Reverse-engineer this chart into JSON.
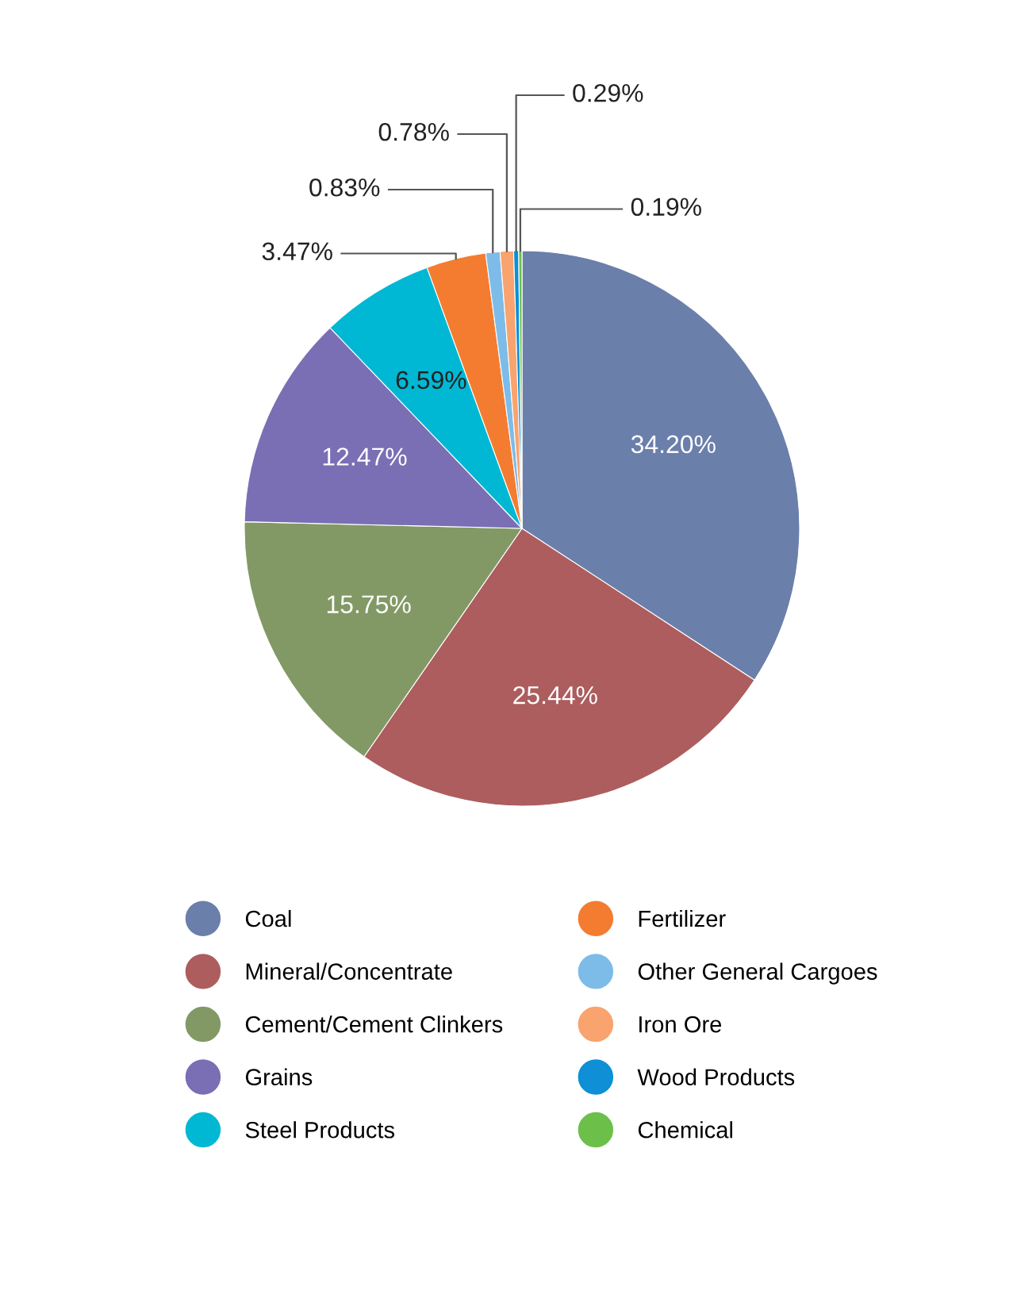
{
  "chart_data": {
    "type": "pie",
    "categories": [
      "Coal",
      "Mineral/Concentrate",
      "Cement/Cement Clinkers",
      "Grains",
      "Steel Products",
      "Fertilizer",
      "Other General Cargoes",
      "Iron Ore",
      "Wood Products",
      "Chemical"
    ],
    "values": [
      34.2,
      25.44,
      15.75,
      12.47,
      6.59,
      3.47,
      0.83,
      0.78,
      0.29,
      0.19
    ],
    "value_labels": [
      "34.20%",
      "25.44%",
      "15.75%",
      "12.47%",
      "6.59%",
      "3.47%",
      "0.83%",
      "0.78%",
      "0.29%",
      "0.19%"
    ],
    "colors": [
      "#6b7fab",
      "#ad5d5e",
      "#829966",
      "#7a6fb4",
      "#00b8d4",
      "#f47c30",
      "#7dbce8",
      "#f9a36e",
      "#0e8fd6",
      "#6cc04a"
    ],
    "legend": "bottom"
  }
}
